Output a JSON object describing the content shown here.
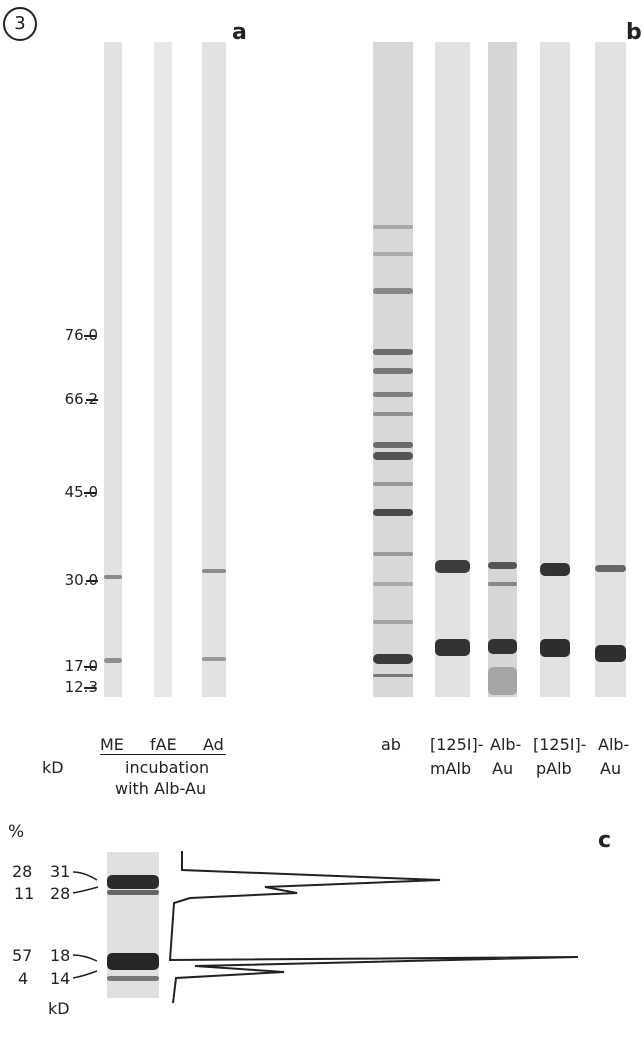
{
  "figure_number": "3",
  "panel_a": {
    "letter": "a",
    "markers": [
      "76.0",
      "66.2",
      "45.0",
      "30.0",
      "17.0",
      "12.3"
    ],
    "unit": "kD",
    "lanes": [
      "ME",
      "fAE",
      "Ad"
    ],
    "caption_line1": "incubation",
    "caption_line2": "with Alb-Au"
  },
  "panel_b": {
    "letter": "b",
    "lanes": [
      {
        "line1": "ab",
        "line2": ""
      },
      {
        "line1": "[125I]-",
        "line2": "mAlb"
      },
      {
        "line1": "Alb-",
        "line2": "Au"
      },
      {
        "line1": "[125I]-",
        "line2": "pAlb"
      },
      {
        "line1": "Alb-",
        "line2": "Au"
      }
    ]
  },
  "panel_c": {
    "letter": "c",
    "percent_header": "%",
    "percents": [
      "28",
      "11",
      "57",
      "4"
    ],
    "markers": [
      "31",
      "28",
      "18",
      "14"
    ],
    "unit": "kD"
  }
}
